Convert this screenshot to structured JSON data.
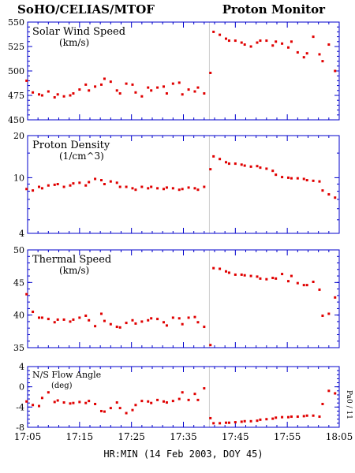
{
  "header": {
    "left": "SoHO/CELIAS/MTOF",
    "right": "Proton Monitor"
  },
  "colors": {
    "points": "#e00000",
    "axes": "#0000cc",
    "text": "#000000",
    "marker_line": "#cccccc"
  },
  "chart_data": [
    {
      "type": "scatter",
      "title": "Solar Wind Speed",
      "unit": "(km/s)",
      "ylim": [
        450,
        550
      ],
      "yticks": [
        "450",
        "475",
        "500",
        "525",
        "550"
      ],
      "x": [
        17.08,
        17.1,
        17.12,
        17.13,
        17.15,
        17.17,
        17.18,
        17.2,
        17.22,
        17.23,
        17.25,
        17.27,
        17.28,
        17.3,
        17.32,
        17.33,
        17.35,
        17.37,
        17.38,
        17.4,
        17.42,
        17.43,
        17.45,
        17.47,
        17.48,
        17.5,
        17.52,
        17.53,
        17.55,
        17.57,
        17.58,
        17.6,
        17.62,
        17.63,
        17.65,
        17.67,
        17.68,
        17.7,
        17.72,
        17.73,
        17.75,
        17.77,
        17.78,
        17.8,
        17.82,
        17.83,
        17.85,
        17.87,
        17.88,
        17.9,
        17.92,
        17.93,
        17.95,
        17.97,
        17.98,
        18.0,
        18.02,
        18.03,
        18.05,
        18.07
      ],
      "y": [
        490,
        478,
        476,
        475,
        479,
        473,
        476,
        474,
        475,
        477,
        481,
        486,
        480,
        484,
        486,
        492,
        489,
        480,
        477,
        487,
        486,
        478,
        474,
        483,
        480,
        483,
        484,
        477,
        487,
        488,
        476,
        481,
        479,
        483,
        477,
        498,
        540,
        537,
        533,
        531,
        531,
        529,
        527,
        525,
        529,
        531,
        531,
        526,
        530,
        528,
        524,
        530,
        519,
        514,
        518,
        535,
        517,
        510,
        527,
        500
      ]
    },
    {
      "type": "scatter",
      "title": "Proton Density",
      "unit": "(1/cm^3)",
      "ylim": [
        4,
        20
      ],
      "log": true,
      "yticks": [
        "4",
        "10",
        "20"
      ],
      "x": [
        17.08,
        17.1,
        17.12,
        17.13,
        17.15,
        17.17,
        17.18,
        17.2,
        17.22,
        17.23,
        17.25,
        17.27,
        17.28,
        17.3,
        17.32,
        17.33,
        17.35,
        17.37,
        17.38,
        17.4,
        17.42,
        17.43,
        17.45,
        17.47,
        17.48,
        17.5,
        17.52,
        17.53,
        17.55,
        17.57,
        17.58,
        17.6,
        17.62,
        17.63,
        17.65,
        17.67,
        17.68,
        17.7,
        17.72,
        17.73,
        17.75,
        17.77,
        17.78,
        17.8,
        17.82,
        17.83,
        17.85,
        17.87,
        17.88,
        17.9,
        17.92,
        17.93,
        17.95,
        17.97,
        17.98,
        18.0,
        18.02,
        18.03,
        18.05,
        18.07
      ],
      "y": [
        8.3,
        8.1,
        8.6,
        8.4,
        8.8,
        8.9,
        9.0,
        8.6,
        8.8,
        9.1,
        9.2,
        8.8,
        9.3,
        9.8,
        9.6,
        9.0,
        9.4,
        9.2,
        8.6,
        8.6,
        8.4,
        8.2,
        8.6,
        8.4,
        8.6,
        8.4,
        8.3,
        8.5,
        8.4,
        8.2,
        8.3,
        8.5,
        8.4,
        8.2,
        8.6,
        11.5,
        14.2,
        13.6,
        12.9,
        12.6,
        12.6,
        12.4,
        12.2,
        12.0,
        12.1,
        11.8,
        11.6,
        11.2,
        10.5,
        10.1,
        10.0,
        9.9,
        9.9,
        9.8,
        9.6,
        9.5,
        9.4,
        8.1,
        7.6,
        7.2
      ]
    },
    {
      "type": "scatter",
      "title": "Thermal Speed",
      "unit": "(km/s)",
      "ylim": [
        35,
        50
      ],
      "yticks": [
        "35",
        "40",
        "45",
        "50"
      ],
      "x": [
        17.08,
        17.1,
        17.12,
        17.13,
        17.15,
        17.17,
        17.18,
        17.2,
        17.22,
        17.23,
        17.25,
        17.27,
        17.28,
        17.3,
        17.32,
        17.33,
        17.35,
        17.37,
        17.38,
        17.4,
        17.42,
        17.43,
        17.45,
        17.47,
        17.48,
        17.5,
        17.52,
        17.53,
        17.55,
        17.57,
        17.58,
        17.6,
        17.62,
        17.63,
        17.65,
        17.67,
        17.68,
        17.7,
        17.72,
        17.73,
        17.75,
        17.77,
        17.78,
        17.8,
        17.82,
        17.83,
        17.85,
        17.87,
        17.88,
        17.9,
        17.92,
        17.93,
        17.95,
        17.97,
        17.98,
        18.0,
        18.02,
        18.03,
        18.05,
        18.07
      ],
      "y": [
        43.2,
        40.5,
        39.6,
        39.6,
        39.4,
        38.9,
        39.3,
        39.3,
        39.0,
        39.3,
        39.6,
        39.9,
        39.2,
        38.3,
        40.2,
        39.1,
        38.6,
        38.2,
        38.1,
        38.8,
        39.2,
        38.7,
        39.0,
        39.2,
        39.5,
        39.4,
        38.9,
        38.4,
        39.6,
        39.5,
        38.6,
        39.6,
        39.7,
        38.9,
        38.2,
        35.4,
        47.2,
        47.1,
        46.7,
        46.5,
        46.2,
        46.2,
        46.1,
        46.0,
        45.9,
        45.6,
        45.5,
        45.7,
        45.6,
        46.3,
        45.2,
        46.0,
        44.9,
        44.6,
        44.6,
        45.1,
        43.9,
        39.9,
        40.2,
        42.7
      ]
    },
    {
      "type": "scatter",
      "title": "N/S Flow Angle",
      "unit": "(deg)",
      "ylim": [
        -8,
        4
      ],
      "yticks": [
        "-8",
        "-4",
        "0",
        "4"
      ],
      "right_label": "Pa0 / 11",
      "xticks": [
        "17:05",
        "17:15",
        "17:25",
        "17:35",
        "17:45",
        "17:55",
        "18:05"
      ],
      "xlabel": "HR:MIN (14 Feb 2003, DOY 45)",
      "x": [
        17.08,
        17.1,
        17.12,
        17.13,
        17.15,
        17.17,
        17.18,
        17.2,
        17.22,
        17.23,
        17.25,
        17.27,
        17.28,
        17.3,
        17.32,
        17.33,
        17.35,
        17.37,
        17.38,
        17.4,
        17.42,
        17.43,
        17.45,
        17.47,
        17.48,
        17.5,
        17.52,
        17.53,
        17.55,
        17.57,
        17.58,
        17.6,
        17.62,
        17.63,
        17.65,
        17.67,
        17.68,
        17.7,
        17.72,
        17.73,
        17.75,
        17.77,
        17.78,
        17.8,
        17.82,
        17.83,
        17.85,
        17.87,
        17.88,
        17.9,
        17.92,
        17.93,
        17.95,
        17.97,
        17.98,
        18.0,
        18.02,
        18.03,
        18.05,
        18.07
      ],
      "y": [
        -2.9,
        -3.6,
        -3.8,
        -2.2,
        -1.1,
        -3.0,
        -2.7,
        -3.1,
        -3.3,
        -3.2,
        -3.0,
        -3.2,
        -2.8,
        -3.4,
        -4.8,
        -4.9,
        -4.2,
        -3.1,
        -4.2,
        -5.2,
        -4.6,
        -3.6,
        -2.8,
        -2.9,
        -3.2,
        -2.6,
        -2.9,
        -3.1,
        -2.8,
        -2.4,
        -1.1,
        -2.6,
        -1.4,
        -2.6,
        -0.3,
        -6.2,
        -7.2,
        -7.2,
        -7.1,
        -7.1,
        -7.0,
        -6.9,
        -6.8,
        -6.8,
        -6.7,
        -6.5,
        -6.4,
        -6.3,
        -6.1,
        -6.0,
        -6.0,
        -5.9,
        -5.9,
        -5.8,
        -5.7,
        -5.7,
        -5.9,
        -3.4,
        -0.8,
        -1.3
      ]
    }
  ]
}
